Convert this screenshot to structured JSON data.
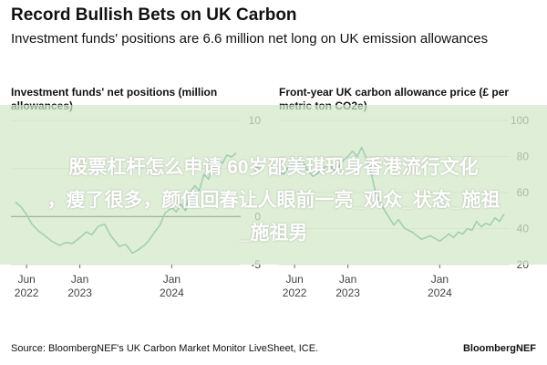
{
  "header": {
    "title": "Record Bullish Bets on UK Carbon",
    "subtitle": "Investment funds' positions are 6.6 million net long on UK emission allowances"
  },
  "footer": {
    "source": "Source: BloombergNEF's UK Carbon Market Monitor LiveSheet, ICE.",
    "brand": "BloombergNEF"
  },
  "overlay": {
    "line1": "股票杠杆怎么申请 60岁邵美琪现身香港流行文化",
    "line2": "，瘦了很多，颜值回春让人眼前一亮_观众_状态_施祖",
    "line3": "_施祖男"
  },
  "colors": {
    "line": "#2c8a86",
    "zero_line": "#111111",
    "grid": "#dddddd"
  },
  "chart_data": [
    {
      "type": "line",
      "title": "Investment funds' net positions (million allowances)",
      "y_axis_side": "right",
      "ylim": [
        -5,
        10
      ],
      "yticks": [
        10,
        5,
        0,
        -5
      ],
      "yticklabels": [
        "10",
        "5",
        "0",
        "-5"
      ],
      "xlim": [
        2022.25,
        2024.75
      ],
      "xticks": [
        2022.42,
        2023.0,
        2024.0
      ],
      "xticklabels": [
        [
          "Jun",
          "2022"
        ],
        [
          "Jan",
          "2023"
        ],
        [
          "Jan",
          "2024"
        ]
      ],
      "series": [
        {
          "name": "Net positions",
          "x": [
            2022.3,
            2022.36,
            2022.42,
            2022.48,
            2022.55,
            2022.62,
            2022.7,
            2022.78,
            2022.85,
            2022.92,
            2023.0,
            2023.07,
            2023.13,
            2023.2,
            2023.27,
            2023.33,
            2023.38,
            2023.43,
            2023.5,
            2023.57,
            2023.63,
            2023.7,
            2023.75,
            2023.8,
            2023.87,
            2023.93,
            2024.0,
            2024.05,
            2024.1,
            2024.15,
            2024.2,
            2024.25,
            2024.3,
            2024.35,
            2024.4,
            2024.45,
            2024.5,
            2024.55,
            2024.6,
            2024.65,
            2024.7
          ],
          "y": [
            1.5,
            1.0,
            0.2,
            -0.8,
            -1.5,
            -2.0,
            -2.6,
            -3.0,
            -2.7,
            -2.8,
            -2.2,
            -1.6,
            -1.9,
            -1.0,
            -0.8,
            -1.9,
            -2.5,
            -3.1,
            -2.9,
            -3.8,
            -3.5,
            -3.0,
            -2.5,
            -1.8,
            -0.9,
            0.4,
            0.9,
            0.5,
            1.3,
            0.6,
            2.5,
            3.2,
            2.7,
            4.4,
            3.9,
            5.3,
            6.0,
            5.5,
            6.4,
            6.2,
            6.6
          ]
        }
      ]
    },
    {
      "type": "line",
      "title": "Front-year UK carbon allowance price (£ per metric ton CO2e)",
      "y_axis_side": "right",
      "ylim": [
        20,
        100
      ],
      "yticks": [
        100,
        80,
        60,
        40,
        20
      ],
      "yticklabels": [
        "100",
        "80",
        "60",
        "40",
        "20"
      ],
      "xlim": [
        2022.25,
        2024.75
      ],
      "xticks": [
        2022.42,
        2023.0,
        2024.0
      ],
      "xticklabels": [
        [
          "Jun",
          "2022"
        ],
        [
          "Jan",
          "2023"
        ],
        [
          "Jan",
          "2024"
        ]
      ],
      "series": [
        {
          "name": "Price",
          "x": [
            2022.25,
            2022.3,
            2022.35,
            2022.42,
            2022.5,
            2022.55,
            2022.62,
            2022.68,
            2022.75,
            2022.8,
            2022.85,
            2022.9,
            2022.95,
            2023.0,
            2023.05,
            2023.1,
            2023.15,
            2023.2,
            2023.25,
            2023.3,
            2023.35,
            2023.4,
            2023.45,
            2023.5,
            2023.55,
            2023.62,
            2023.7,
            2023.8,
            2023.9,
            2024.0,
            2024.05,
            2024.1,
            2024.15,
            2024.2,
            2024.25,
            2024.3,
            2024.35,
            2024.4,
            2024.45,
            2024.5,
            2024.55,
            2024.6,
            2024.65,
            2024.7
          ],
          "y": [
            72,
            70,
            74,
            76,
            78,
            73,
            69,
            71,
            74,
            76,
            72,
            74,
            78,
            80,
            83,
            80,
            85,
            79,
            72,
            60,
            55,
            50,
            46,
            42,
            45,
            40,
            38,
            34,
            36,
            33,
            35,
            37,
            35,
            38,
            37,
            40,
            39,
            44,
            41,
            43,
            42,
            46,
            44,
            48
          ]
        }
      ]
    }
  ]
}
